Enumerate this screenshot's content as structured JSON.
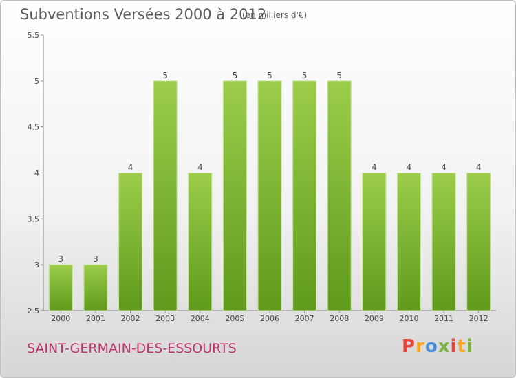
{
  "header": {
    "title": "Subventions Versées 2000 à 2012",
    "subtitle": "(en milliers d'€)"
  },
  "footer": {
    "commune": "SAINT-GERMAIN-DES-ESSOURTS",
    "logo_letters": [
      "P",
      "r",
      "o",
      "x",
      "i",
      "t",
      "i"
    ],
    "logo_colors": [
      "#e8453c",
      "#f5a623",
      "#4a90d9",
      "#7cb342",
      "#e8453c",
      "#f5a623",
      "#7cb342"
    ]
  },
  "chart_data": {
    "type": "bar",
    "title": "Subventions Versées 2000 à 2012",
    "subtitle": "(en milliers d'€)",
    "categories": [
      "2000",
      "2001",
      "2002",
      "2003",
      "2004",
      "2005",
      "2006",
      "2007",
      "2008",
      "2009",
      "2010",
      "2011",
      "2012"
    ],
    "values": [
      3,
      3,
      4,
      5,
      4,
      5,
      5,
      5,
      5,
      4,
      4,
      4,
      4
    ],
    "data_labels": [
      "3",
      "3",
      "4",
      "5",
      "4",
      "5",
      "5",
      "5",
      "5",
      "4",
      "4",
      "4",
      "4"
    ],
    "ylim": [
      2.5,
      5.5
    ],
    "yticks": [
      2.5,
      3,
      3.5,
      4,
      4.5,
      5,
      5.5
    ],
    "ytick_labels": [
      "2.5",
      "3",
      "3.5",
      "4",
      "4.5",
      "5",
      "5.5"
    ],
    "grid": false,
    "bar_color_top": "#9ccd4b",
    "bar_color_bottom": "#5f9a1c"
  }
}
